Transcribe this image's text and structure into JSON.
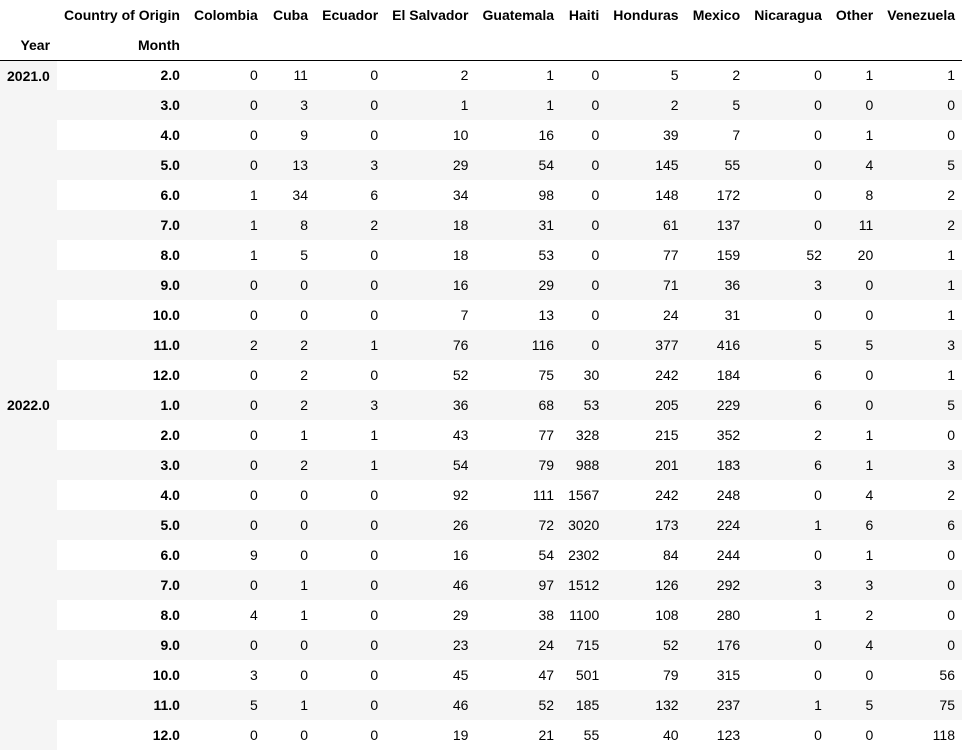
{
  "chart_data": {
    "type": "table",
    "header": {
      "columns_label": "Country of Origin",
      "index_labels": [
        "Year",
        "Month"
      ],
      "columns": [
        "Colombia",
        "Cuba",
        "Ecuador",
        "El Salvador",
        "Guatemala",
        "Haiti",
        "Honduras",
        "Mexico",
        "Nicaragua",
        "Other",
        "Venezuela"
      ]
    },
    "groups": [
      {
        "year": "2021.0",
        "rows": [
          {
            "month": "2.0",
            "values": [
              "0",
              "11",
              "0",
              "2",
              "1",
              "0",
              "5",
              "2",
              "0",
              "1",
              "1"
            ]
          },
          {
            "month": "3.0",
            "values": [
              "0",
              "3",
              "0",
              "1",
              "1",
              "0",
              "2",
              "5",
              "0",
              "0",
              "0"
            ]
          },
          {
            "month": "4.0",
            "values": [
              "0",
              "9",
              "0",
              "10",
              "16",
              "0",
              "39",
              "7",
              "0",
              "1",
              "0"
            ]
          },
          {
            "month": "5.0",
            "values": [
              "0",
              "13",
              "3",
              "29",
              "54",
              "0",
              "145",
              "55",
              "0",
              "4",
              "5"
            ]
          },
          {
            "month": "6.0",
            "values": [
              "1",
              "34",
              "6",
              "34",
              "98",
              "0",
              "148",
              "172",
              "0",
              "8",
              "2"
            ]
          },
          {
            "month": "7.0",
            "values": [
              "1",
              "8",
              "2",
              "18",
              "31",
              "0",
              "61",
              "137",
              "0",
              "11",
              "2"
            ]
          },
          {
            "month": "8.0",
            "values": [
              "1",
              "5",
              "0",
              "18",
              "53",
              "0",
              "77",
              "159",
              "52",
              "20",
              "1"
            ]
          },
          {
            "month": "9.0",
            "values": [
              "0",
              "0",
              "0",
              "16",
              "29",
              "0",
              "71",
              "36",
              "3",
              "0",
              "1"
            ]
          },
          {
            "month": "10.0",
            "values": [
              "0",
              "0",
              "0",
              "7",
              "13",
              "0",
              "24",
              "31",
              "0",
              "0",
              "1"
            ]
          },
          {
            "month": "11.0",
            "values": [
              "2",
              "2",
              "1",
              "76",
              "116",
              "0",
              "377",
              "416",
              "5",
              "5",
              "3"
            ]
          },
          {
            "month": "12.0",
            "values": [
              "0",
              "2",
              "0",
              "52",
              "75",
              "30",
              "242",
              "184",
              "6",
              "0",
              "1"
            ]
          }
        ]
      },
      {
        "year": "2022.0",
        "rows": [
          {
            "month": "1.0",
            "values": [
              "0",
              "2",
              "3",
              "36",
              "68",
              "53",
              "205",
              "229",
              "6",
              "0",
              "5"
            ]
          },
          {
            "month": "2.0",
            "values": [
              "0",
              "1",
              "1",
              "43",
              "77",
              "328",
              "215",
              "352",
              "2",
              "1",
              "0"
            ]
          },
          {
            "month": "3.0",
            "values": [
              "0",
              "2",
              "1",
              "54",
              "79",
              "988",
              "201",
              "183",
              "6",
              "1",
              "3"
            ]
          },
          {
            "month": "4.0",
            "values": [
              "0",
              "0",
              "0",
              "92",
              "111",
              "1567",
              "242",
              "248",
              "0",
              "4",
              "2"
            ]
          },
          {
            "month": "5.0",
            "values": [
              "0",
              "0",
              "0",
              "26",
              "72",
              "3020",
              "173",
              "224",
              "1",
              "6",
              "6"
            ]
          },
          {
            "month": "6.0",
            "values": [
              "9",
              "0",
              "0",
              "16",
              "54",
              "2302",
              "84",
              "244",
              "0",
              "1",
              "0"
            ]
          },
          {
            "month": "7.0",
            "values": [
              "0",
              "1",
              "0",
              "46",
              "97",
              "1512",
              "126",
              "292",
              "3",
              "3",
              "0"
            ]
          },
          {
            "month": "8.0",
            "values": [
              "4",
              "1",
              "0",
              "29",
              "38",
              "1100",
              "108",
              "280",
              "1",
              "2",
              "0"
            ]
          },
          {
            "month": "9.0",
            "values": [
              "0",
              "0",
              "0",
              "23",
              "24",
              "715",
              "52",
              "176",
              "0",
              "4",
              "0"
            ]
          },
          {
            "month": "10.0",
            "values": [
              "3",
              "0",
              "0",
              "45",
              "47",
              "501",
              "79",
              "315",
              "0",
              "0",
              "56"
            ]
          },
          {
            "month": "11.0",
            "values": [
              "5",
              "1",
              "0",
              "46",
              "52",
              "185",
              "132",
              "237",
              "1",
              "5",
              "75"
            ]
          },
          {
            "month": "12.0",
            "values": [
              "0",
              "0",
              "0",
              "19",
              "21",
              "55",
              "40",
              "123",
              "0",
              "0",
              "118"
            ]
          }
        ]
      }
    ]
  }
}
